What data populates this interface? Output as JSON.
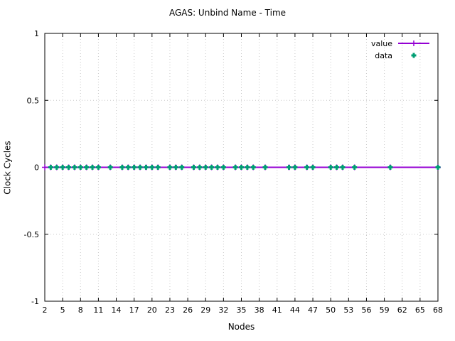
{
  "title": "AGAS: Unbind Name - Time",
  "colors": {
    "value_series": "#9400D3",
    "data_series": "#009E73",
    "grid": "#c8c8c8",
    "axis": "#000000",
    "background": "#ffffff"
  },
  "chart_data": {
    "type": "line",
    "title": "AGAS: Unbind Name - Time",
    "xlabel": "Nodes",
    "ylabel": "Clock Cycles",
    "xlim": [
      2,
      68
    ],
    "ylim": [
      -1,
      1
    ],
    "xticks": [
      2,
      5,
      8,
      11,
      14,
      17,
      20,
      23,
      26,
      29,
      32,
      35,
      38,
      41,
      44,
      47,
      50,
      53,
      56,
      59,
      62,
      65,
      68
    ],
    "yticks": [
      -1,
      -0.5,
      0,
      0.5,
      1
    ],
    "grid": true,
    "legend_position": "top-right-inside",
    "series": [
      {
        "name": "value",
        "render": "line+marker",
        "marker": "plus",
        "color": "#9400D3",
        "x": [
          2,
          3,
          4,
          5,
          6,
          7,
          8,
          9,
          10,
          11,
          13,
          15,
          16,
          17,
          18,
          19,
          20,
          21,
          23,
          24,
          25,
          27,
          28,
          29,
          30,
          31,
          32,
          34,
          35,
          36,
          37,
          39,
          43,
          44,
          46,
          47,
          50,
          51,
          52,
          54,
          60,
          68
        ],
        "y": 0
      },
      {
        "name": "data",
        "render": "scatter",
        "marker": "asterisk",
        "color": "#009E73",
        "x": [
          3,
          4,
          5,
          6,
          7,
          8,
          9,
          10,
          11,
          13,
          15,
          16,
          17,
          18,
          19,
          20,
          21,
          23,
          24,
          25,
          27,
          28,
          29,
          30,
          31,
          32,
          34,
          35,
          36,
          37,
          39,
          43,
          44,
          46,
          47,
          50,
          51,
          52,
          54,
          60,
          68
        ],
        "y": 0
      }
    ]
  }
}
